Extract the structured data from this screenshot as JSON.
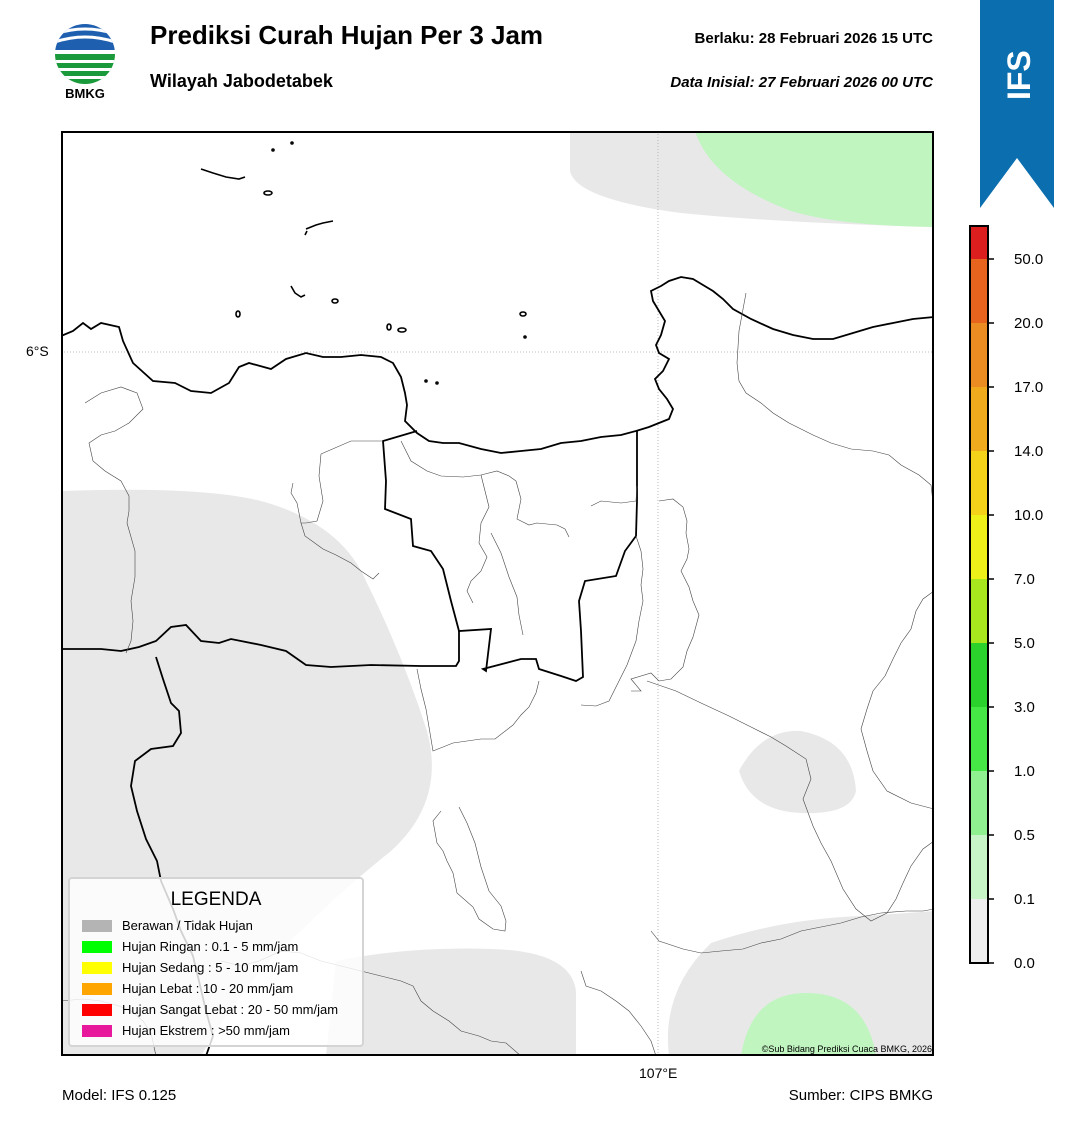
{
  "header": {
    "logo_text": "BMKG",
    "title": "Prediksi Curah Hujan Per 3 Jam",
    "subtitle": "Wilayah Jabodetabek",
    "valid_time": "Berlaku:  28 Februari 2026 15 UTC",
    "initial_data": "Data Inisial:  27 Februari 2026 00 UTC",
    "model_badge": "IFS"
  },
  "map": {
    "lat_label": "6°S",
    "lon_label": "107°E",
    "copyright": "©Sub Bidang Prediksi Cuaca BMKG, 2026",
    "colors": {
      "no_rain": "#e8e8e8",
      "light_rain_01_05": "#c0f5c0",
      "boundary": "#000000",
      "gridline": "#aaaaaa"
    }
  },
  "legend": {
    "title": "LEGENDA",
    "items": [
      {
        "label": "Berawan / Tidak Hujan",
        "color": "#b4b4b4"
      },
      {
        "label": "Hujan Ringan : 0.1 - 5 mm/jam",
        "color": "#00ff00"
      },
      {
        "label": "Hujan Sedang : 5 - 10 mm/jam",
        "color": "#ffff00"
      },
      {
        "label": "Hujan Lebat : 10 - 20 mm/jam",
        "color": "#ffa500"
      },
      {
        "label": "Hujan Sangat Lebat : 20 - 50 mm/jam",
        "color": "#ff0000"
      },
      {
        "label": "Hujan Ekstrem : >50 mm/jam",
        "color": "#e8189c"
      }
    ]
  },
  "colorbar": {
    "ticks": [
      "0.0",
      "0.1",
      "0.5",
      "1.0",
      "3.0",
      "5.0",
      "7.0",
      "10.0",
      "14.0",
      "17.0",
      "20.0",
      "50.0"
    ],
    "colors": [
      "#eeeeee",
      "#c8f5c8",
      "#8ef08e",
      "#46e846",
      "#2cd22c",
      "#a8e61e",
      "#eef01a",
      "#f5d21a",
      "#f0aa1e",
      "#eb8c23",
      "#e6641e",
      "#dc1e1e",
      "#e619c3"
    ]
  },
  "footer": {
    "model": "Model: IFS 0.125",
    "source": "Sumber: CIPS BMKG"
  }
}
